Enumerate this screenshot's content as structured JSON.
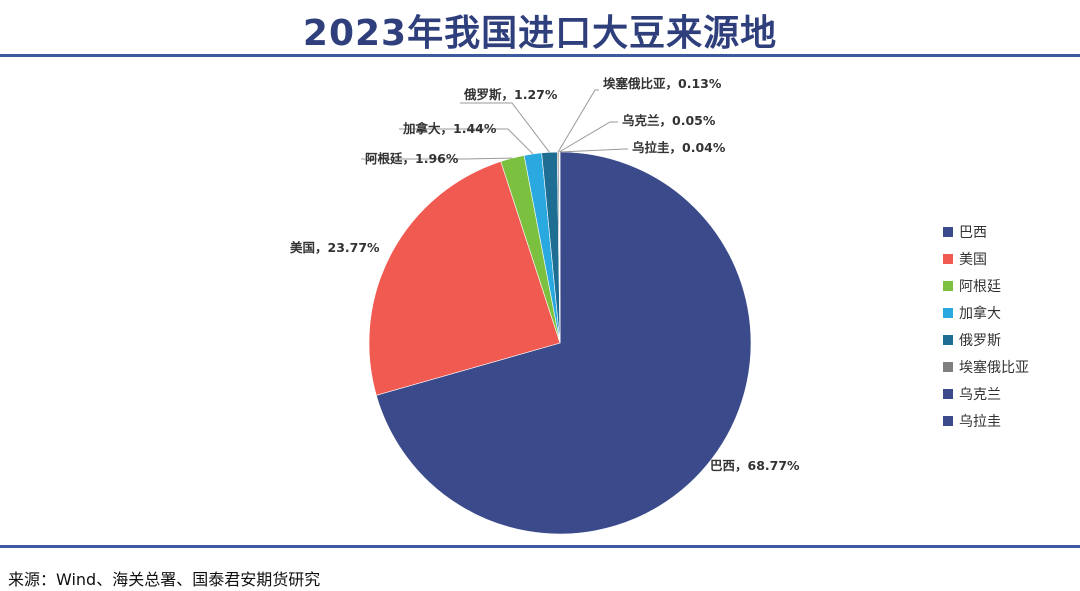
{
  "chart_data": {
    "type": "pie",
    "title": "2023年我国进口大豆来源地",
    "legend_position": "right",
    "slices": [
      {
        "name": "巴西",
        "value": 68.77,
        "label": "巴西，68.77%",
        "color": "#3b4a8a"
      },
      {
        "name": "美国",
        "value": 23.77,
        "label": "美国，23.77%",
        "color": "#f15a50"
      },
      {
        "name": "阿根廷",
        "value": 1.96,
        "label": "阿根廷，1.96%",
        "color": "#7cc040"
      },
      {
        "name": "加拿大",
        "value": 1.44,
        "label": "加拿大，1.44%",
        "color": "#2aa8e0"
      },
      {
        "name": "俄罗斯",
        "value": 1.27,
        "label": "俄罗斯，1.27%",
        "color": "#1e6d93"
      },
      {
        "name": "埃塞俄比亚",
        "value": 0.13,
        "label": "埃塞俄比亚，0.13%",
        "color": "#7f7f7f"
      },
      {
        "name": "乌克兰",
        "value": 0.05,
        "label": "乌克兰，0.05%",
        "color": "#3b4a8a"
      },
      {
        "name": "乌拉圭",
        "value": 0.04,
        "label": "乌拉圭，0.04%",
        "color": "#3b4a8a"
      }
    ]
  },
  "source": "来源：Wind、海关总署、国泰君安期货研究"
}
